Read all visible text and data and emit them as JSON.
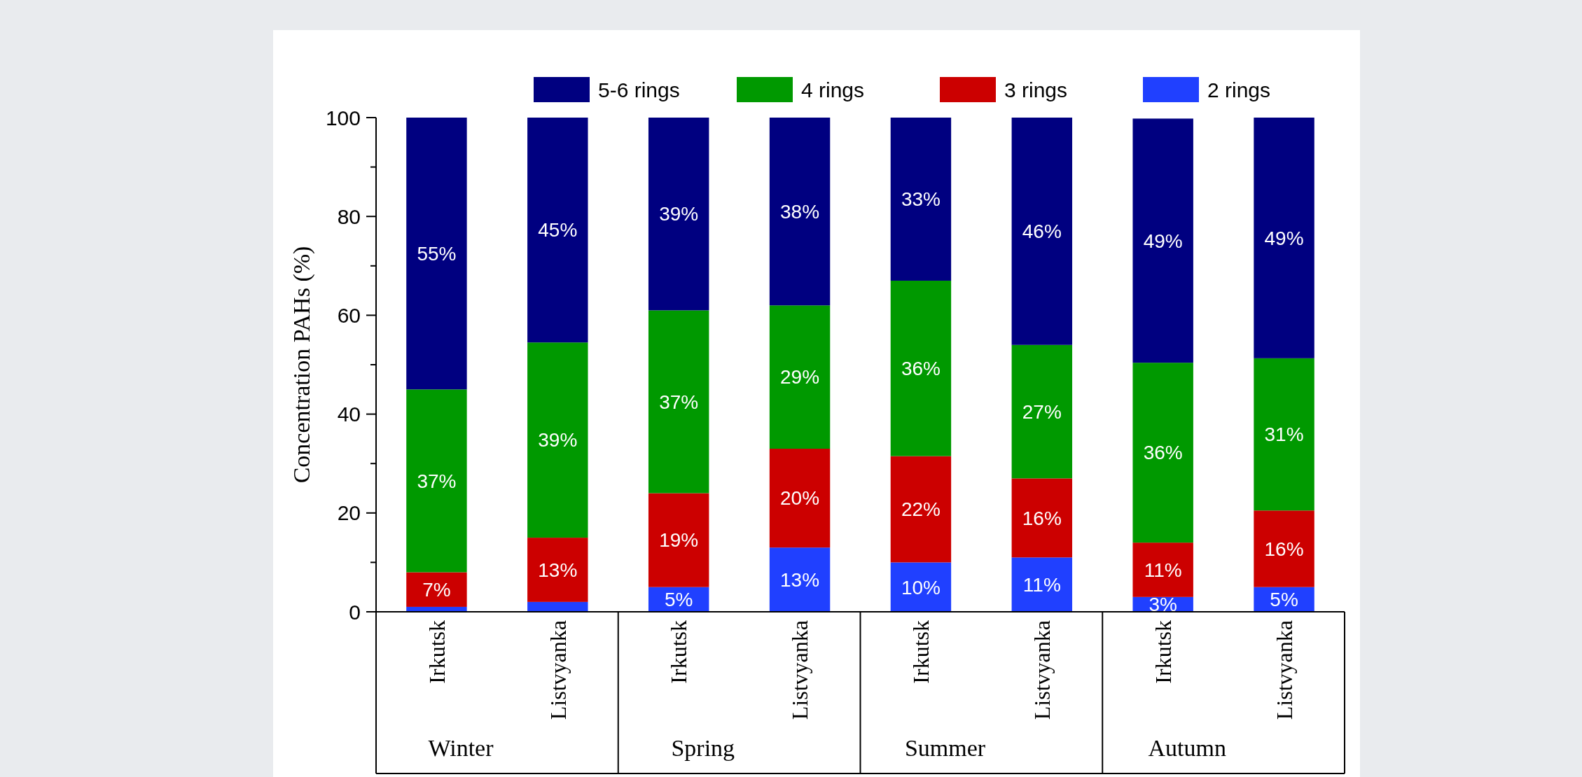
{
  "chart_data": {
    "type": "bar",
    "stacked": true,
    "ylabel": "Concentration PAHs (%)",
    "categories": [
      "Irkutsk",
      "Listvyanka",
      "Irkutsk",
      "Listvyanka",
      "Irkutsk",
      "Listvyanka",
      "Irkutsk",
      "Listvyanka"
    ],
    "annotations": [
      "Winter",
      "Spring",
      "Summer",
      "Autumn"
    ],
    "series": [
      {
        "name": "2 rings",
        "color": "#2040ff",
        "values": [
          1,
          2,
          5,
          13,
          10,
          11,
          3,
          5
        ],
        "value_labels": [
          null,
          null,
          "5%",
          "13%",
          "10%",
          "11%",
          "3%",
          "5%"
        ]
      },
      {
        "name": "3 rings",
        "color": "#cc0000",
        "values": [
          7,
          13,
          19,
          20,
          21.5,
          16,
          11,
          15.5
        ],
        "value_labels": [
          "7%",
          "13%",
          "19%",
          "20%",
          "22%",
          "16%",
          "11%",
          "16%"
        ]
      },
      {
        "name": "4 rings",
        "color": "#009900",
        "values": [
          37,
          39.5,
          37,
          29,
          35.5,
          27,
          36.4,
          30.8
        ],
        "value_labels": [
          "37%",
          "39%",
          "37%",
          "29%",
          "36%",
          "27%",
          "36%",
          "31%"
        ]
      },
      {
        "name": "5-6 rings",
        "color": "#000080",
        "values": [
          55,
          45.5,
          39,
          38,
          33,
          46,
          49.4,
          48.7
        ],
        "value_labels": [
          "55%",
          "45%",
          "39%",
          "38%",
          "33%",
          "46%",
          "49%",
          "49%"
        ]
      }
    ],
    "ylim": [
      0,
      100
    ],
    "yticks": [
      0,
      {
        "value": 10,
        "label": null
      },
      20,
      {
        "value": 30,
        "label": null
      },
      40,
      {
        "value": 50,
        "label": null
      },
      60,
      {
        "value": 70,
        "label": null
      },
      80,
      {
        "value": 90,
        "label": null
      },
      100
    ],
    "legend": "top"
  }
}
